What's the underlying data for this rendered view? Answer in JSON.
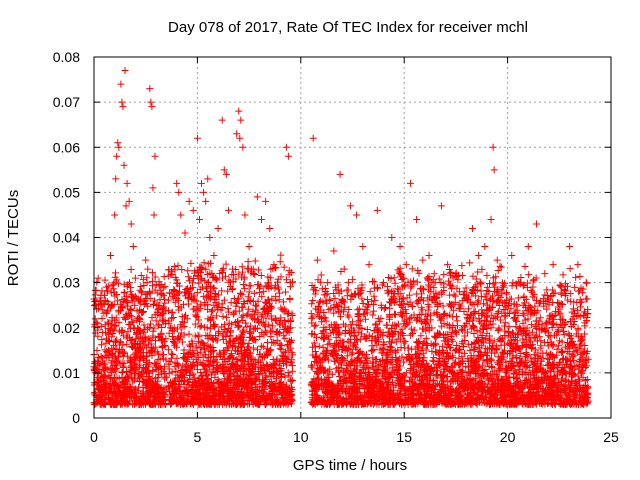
{
  "chart_data": {
    "type": "scatter",
    "title": "Day 078 of 2017, Rate Of TEC Index for receiver mchl",
    "xlabel": "GPS time / hours",
    "ylabel": "ROTI / TECUs",
    "xlim": [
      0,
      25
    ],
    "ylim": [
      0,
      0.08
    ],
    "x_ticks": [
      0,
      5,
      10,
      15,
      20,
      25
    ],
    "y_ticks": [
      0,
      0.01,
      0.02,
      0.03,
      0.04,
      0.05,
      0.06,
      0.07,
      0.08
    ],
    "x_tick_labels": [
      "0",
      "5",
      "10",
      "15",
      "20",
      "25"
    ],
    "y_tick_labels": [
      "0",
      "0.01",
      "0.02",
      "0.03",
      "0.04",
      "0.05",
      "0.06",
      "0.07",
      "0.08"
    ],
    "grid": true,
    "marker": "plus",
    "series_color": "#ff0000",
    "series": [
      {
        "values": [
          [
            0.1,
            0.026
          ],
          [
            0.15,
            0.009
          ],
          [
            0.2,
            0.031
          ],
          [
            0.3,
            0.012
          ],
          [
            0.4,
            0.024
          ],
          [
            0.5,
            0.007
          ],
          [
            0.6,
            0.029
          ],
          [
            0.7,
            0.015
          ],
          [
            0.8,
            0.036
          ],
          [
            0.9,
            0.011
          ],
          [
            1.0,
            0.045
          ],
          [
            1.05,
            0.053
          ],
          [
            1.1,
            0.058
          ],
          [
            1.15,
            0.061
          ],
          [
            1.2,
            0.06
          ],
          [
            1.3,
            0.074
          ],
          [
            1.35,
            0.07
          ],
          [
            1.4,
            0.069
          ],
          [
            1.45,
            0.056
          ],
          [
            1.5,
            0.077
          ],
          [
            1.55,
            0.047
          ],
          [
            1.6,
            0.052
          ],
          [
            1.7,
            0.048
          ],
          [
            1.8,
            0.043
          ],
          [
            1.9,
            0.038
          ],
          [
            2.0,
            0.031
          ],
          [
            2.1,
            0.022
          ],
          [
            2.2,
            0.015
          ],
          [
            2.3,
            0.028
          ],
          [
            2.4,
            0.019
          ],
          [
            2.5,
            0.035
          ],
          [
            2.6,
            0.033
          ],
          [
            2.7,
            0.073
          ],
          [
            2.75,
            0.07
          ],
          [
            2.8,
            0.069
          ],
          [
            2.85,
            0.051
          ],
          [
            2.9,
            0.045
          ],
          [
            2.95,
            0.058
          ],
          [
            3.1,
            0.025
          ],
          [
            3.3,
            0.014
          ],
          [
            3.5,
            0.009
          ],
          [
            3.7,
            0.02
          ],
          [
            3.9,
            0.016
          ],
          [
            4.0,
            0.052
          ],
          [
            4.1,
            0.05
          ],
          [
            4.2,
            0.045
          ],
          [
            4.4,
            0.041
          ],
          [
            4.6,
            0.048
          ],
          [
            4.8,
            0.046
          ],
          [
            5.0,
            0.062
          ],
          [
            5.1,
            0.044
          ],
          [
            5.2,
            0.052
          ],
          [
            5.3,
            0.05
          ],
          [
            5.4,
            0.048
          ],
          [
            5.5,
            0.053
          ],
          [
            5.6,
            0.04
          ],
          [
            5.8,
            0.036
          ],
          [
            6.0,
            0.042
          ],
          [
            6.2,
            0.066
          ],
          [
            6.3,
            0.055
          ],
          [
            6.4,
            0.054
          ],
          [
            6.5,
            0.046
          ],
          [
            6.7,
            0.033
          ],
          [
            6.9,
            0.063
          ],
          [
            7.0,
            0.068
          ],
          [
            7.05,
            0.062
          ],
          [
            7.1,
            0.066
          ],
          [
            7.2,
            0.06
          ],
          [
            7.3,
            0.045
          ],
          [
            7.5,
            0.038
          ],
          [
            7.7,
            0.033
          ],
          [
            7.9,
            0.049
          ],
          [
            8.1,
            0.044
          ],
          [
            8.3,
            0.048
          ],
          [
            8.5,
            0.042
          ],
          [
            8.7,
            0.034
          ],
          [
            8.9,
            0.029
          ],
          [
            9.1,
            0.024
          ],
          [
            9.3,
            0.06
          ],
          [
            9.4,
            0.058
          ],
          [
            9.5,
            0.02
          ],
          [
            9.6,
            0.014
          ],
          [
            10.6,
            0.062
          ],
          [
            10.8,
            0.035
          ],
          [
            11.0,
            0.022
          ],
          [
            11.3,
            0.03
          ],
          [
            11.6,
            0.037
          ],
          [
            11.9,
            0.054
          ],
          [
            12.1,
            0.033
          ],
          [
            12.4,
            0.047
          ],
          [
            12.7,
            0.045
          ],
          [
            13.0,
            0.038
          ],
          [
            13.3,
            0.034
          ],
          [
            13.7,
            0.046
          ],
          [
            14.0,
            0.03
          ],
          [
            14.4,
            0.04
          ],
          [
            14.8,
            0.038
          ],
          [
            15.1,
            0.034
          ],
          [
            15.3,
            0.052
          ],
          [
            15.6,
            0.044
          ],
          [
            15.9,
            0.035
          ],
          [
            16.2,
            0.036
          ],
          [
            16.5,
            0.03
          ],
          [
            16.8,
            0.047
          ],
          [
            17.1,
            0.034
          ],
          [
            17.5,
            0.032
          ],
          [
            17.9,
            0.028
          ],
          [
            18.3,
            0.042
          ],
          [
            18.6,
            0.036
          ],
          [
            18.9,
            0.038
          ],
          [
            19.2,
            0.044
          ],
          [
            19.3,
            0.06
          ],
          [
            19.35,
            0.055
          ],
          [
            19.5,
            0.035
          ],
          [
            19.8,
            0.029
          ],
          [
            20.2,
            0.036
          ],
          [
            20.6,
            0.03
          ],
          [
            21.0,
            0.038
          ],
          [
            21.4,
            0.043
          ],
          [
            21.8,
            0.032
          ],
          [
            22.2,
            0.034
          ],
          [
            22.6,
            0.029
          ],
          [
            23.0,
            0.038
          ],
          [
            23.4,
            0.034
          ],
          [
            23.8,
            0.03
          ]
        ]
      }
    ],
    "clusters": [
      {
        "x": [
          0.0,
          3.5
        ],
        "peak": 0.03
      },
      {
        "x": [
          3.6,
          9.6
        ],
        "peak": 0.033
      },
      {
        "x": [
          10.5,
          14.5
        ],
        "peak": 0.029
      },
      {
        "x": [
          14.5,
          19.0
        ],
        "peak": 0.032
      },
      {
        "x": [
          19.0,
          23.9
        ],
        "peak": 0.03
      }
    ]
  }
}
